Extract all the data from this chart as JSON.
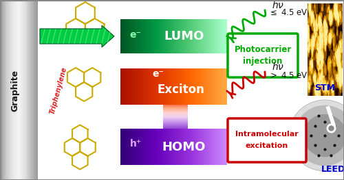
{
  "bg_color": "#ffffff",
  "graphite_text": "Graphite",
  "graphite_text_color": "#1a1a1a",
  "triphenylene_text": "Triphenylene",
  "triphenylene_color": "#dd2222",
  "lumo_label": "LUMO",
  "exciton_label": "Exciton",
  "homo_label": "HOMO",
  "lumo_colors": [
    "#006622",
    "#00aa44",
    "#55dd88"
  ],
  "exciton_colors": [
    "#cc2200",
    "#ee5500",
    "#ff9933"
  ],
  "homo_colors": [
    "#4400aa",
    "#7722cc",
    "#bb88ff"
  ],
  "stm_label": "STM",
  "leed_label": "LEED",
  "stm_label_color": "#0000cc",
  "leed_label_color": "#0000cc",
  "wave_green_color": "#00aa00",
  "wave_red_color": "#cc0000",
  "photocarrier_text1": "Photocarrier",
  "photocarrier_text2": "injection",
  "photocarrier_border": "#00aa00",
  "intramolecular_text1": "Intramolecular",
  "intramolecular_text2": "excitation",
  "intramolecular_border": "#cc0000",
  "hv_color": "#111111",
  "mol_color": "#ccaa00",
  "arrow_color": "#00cc44"
}
